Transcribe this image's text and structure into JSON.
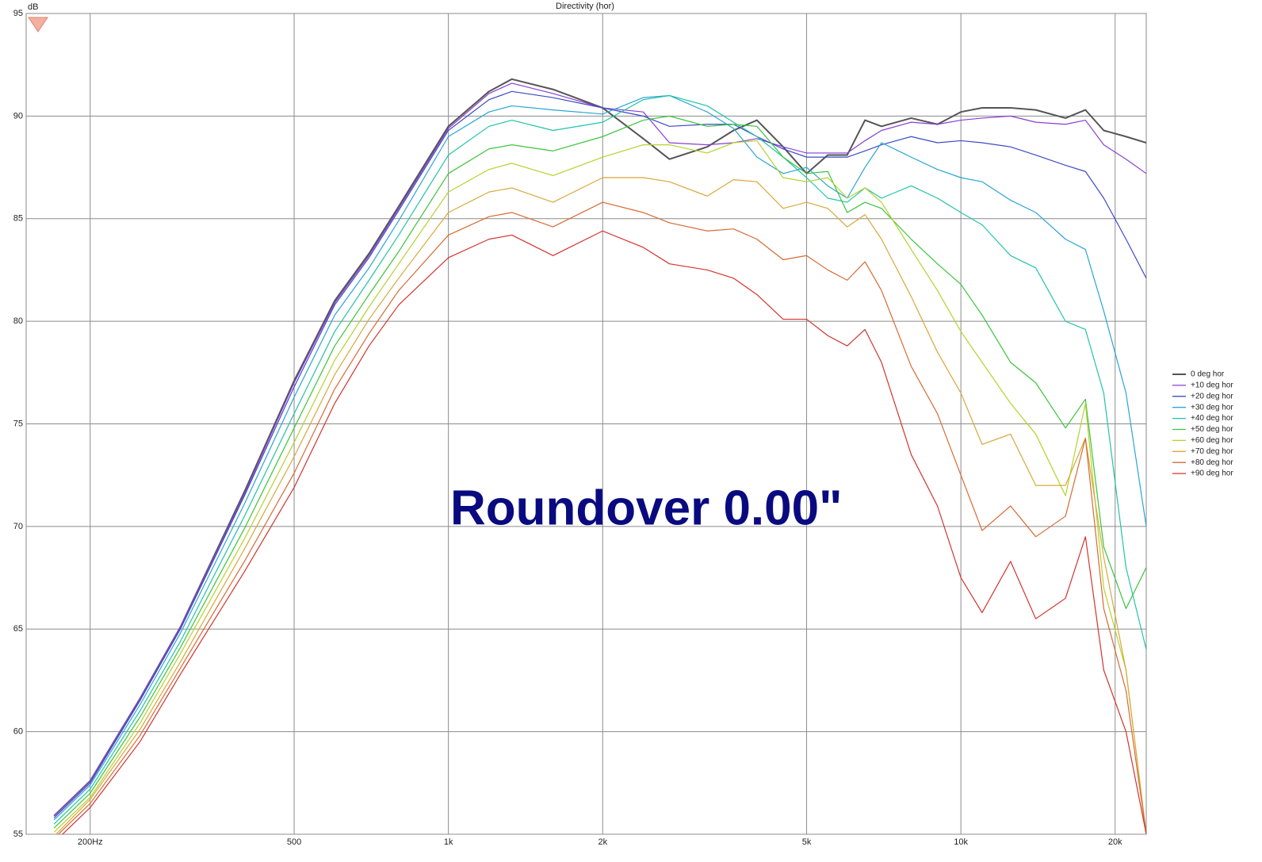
{
  "chart_data": {
    "type": "line",
    "title": "Directivity (hor)",
    "y_label": "dB",
    "annotation": "Roundover 0.00\"",
    "xscale": "log",
    "grid": true,
    "legend": "right",
    "xlim": [
      150,
      23000
    ],
    "ylim": [
      55,
      95
    ],
    "xticks": [
      {
        "value": 200,
        "label": "200Hz"
      },
      500,
      {
        "value": 1000,
        "label": "1k"
      },
      {
        "value": 2000,
        "label": "2k"
      },
      {
        "value": 5000,
        "label": "5k"
      },
      {
        "value": 10000,
        "label": "10k"
      },
      {
        "value": 20000,
        "label": "20k"
      }
    ],
    "yticks": [
      55,
      60,
      65,
      70,
      75,
      80,
      85,
      90,
      95
    ],
    "x": [
      170,
      200,
      250,
      300,
      400,
      500,
      600,
      700,
      800,
      1000,
      1200,
      1330,
      1600,
      2000,
      2400,
      2700,
      3200,
      3600,
      4000,
      4500,
      5000,
      5500,
      6000,
      6500,
      7000,
      8000,
      9000,
      10000,
      11000,
      12500,
      14000,
      16000,
      17500,
      19000,
      21000,
      23000
    ],
    "series": [
      {
        "name": "0 deg hor",
        "color": "#555555",
        "values": [
          55.9,
          57.6,
          61.6,
          65.1,
          71.7,
          77.1,
          81.0,
          83.3,
          85.6,
          89.5,
          91.2,
          91.8,
          91.3,
          90.4,
          88.9,
          87.9,
          88.5,
          89.3,
          89.8,
          88.5,
          87.2,
          88.1,
          88.1,
          89.8,
          89.5,
          89.9,
          89.6,
          90.2,
          90.4,
          90.4,
          90.3,
          89.9,
          90.3,
          89.3,
          89.0,
          88.7
        ]
      },
      {
        "name": "+10 deg hor",
        "color": "#8a3fd1",
        "values": [
          55.9,
          57.6,
          61.6,
          65.1,
          71.6,
          77.0,
          80.9,
          83.2,
          85.5,
          89.4,
          91.1,
          91.6,
          91.1,
          90.4,
          90.2,
          88.7,
          88.6,
          88.7,
          88.9,
          88.5,
          88.2,
          88.2,
          88.2,
          88.8,
          89.3,
          89.7,
          89.6,
          89.8,
          89.9,
          90.0,
          89.7,
          89.6,
          89.8,
          88.6,
          87.9,
          87.2
        ]
      },
      {
        "name": "+20 deg hor",
        "color": "#3d4bc4",
        "values": [
          55.8,
          57.5,
          61.5,
          65.0,
          71.5,
          76.8,
          80.8,
          83.1,
          85.4,
          89.3,
          90.8,
          91.2,
          90.9,
          90.4,
          90.0,
          89.5,
          89.6,
          89.6,
          89.0,
          88.4,
          88.0,
          88.0,
          88.0,
          88.3,
          88.6,
          89.0,
          88.7,
          88.8,
          88.7,
          88.5,
          88.1,
          87.6,
          87.3,
          86.0,
          84.0,
          82.1
        ]
      },
      {
        "name": "+30 deg hor",
        "color": "#2aa5d6",
        "values": [
          55.7,
          57.4,
          61.3,
          64.8,
          71.1,
          76.3,
          80.3,
          82.6,
          84.9,
          89.0,
          90.2,
          90.5,
          90.3,
          90.1,
          90.9,
          91.0,
          90.2,
          89.4,
          88.0,
          87.2,
          87.5,
          86.6,
          86.0,
          87.5,
          88.7,
          88.0,
          87.4,
          87.0,
          86.8,
          85.9,
          85.3,
          84.0,
          83.5,
          80.5,
          76.5,
          70.0
        ]
      },
      {
        "name": "+40 deg hor",
        "color": "#22c4a6",
        "values": [
          55.5,
          57.2,
          61.0,
          64.4,
          70.5,
          75.5,
          79.5,
          82.0,
          84.2,
          88.1,
          89.5,
          89.8,
          89.3,
          89.7,
          90.8,
          91.0,
          90.5,
          89.7,
          89.0,
          88.0,
          87.0,
          86.0,
          85.8,
          86.5,
          86.0,
          86.6,
          86.0,
          85.3,
          84.7,
          83.2,
          82.6,
          80.0,
          79.6,
          76.5,
          68.0,
          64.0
        ]
      },
      {
        "name": "+50 deg hor",
        "color": "#3cc43c",
        "values": [
          55.3,
          57.0,
          60.7,
          64.1,
          69.9,
          74.8,
          78.8,
          81.3,
          83.4,
          87.2,
          88.4,
          88.6,
          88.3,
          89.0,
          89.8,
          90.0,
          89.5,
          89.6,
          89.5,
          88.0,
          87.2,
          87.3,
          85.3,
          85.8,
          85.5,
          84.0,
          82.8,
          81.8,
          80.3,
          78.0,
          77.0,
          74.8,
          76.2,
          69.0,
          66.0,
          68.0
        ]
      },
      {
        "name": "+60 deg hor",
        "color": "#b5d22c",
        "values": [
          55.1,
          56.8,
          60.4,
          63.8,
          69.4,
          74.1,
          78.1,
          80.7,
          82.8,
          86.3,
          87.4,
          87.7,
          87.1,
          88.0,
          88.6,
          88.6,
          88.2,
          88.7,
          88.8,
          87.0,
          86.8,
          87.0,
          86.0,
          86.5,
          85.8,
          83.5,
          81.5,
          79.5,
          78.0,
          76.0,
          74.5,
          71.5,
          76.0,
          67.0,
          63.0,
          55.0
        ]
      },
      {
        "name": "+70 deg hor",
        "color": "#d8a83a",
        "values": [
          54.9,
          56.7,
          60.1,
          63.4,
          68.9,
          73.4,
          77.4,
          80.1,
          82.1,
          85.3,
          86.3,
          86.5,
          85.8,
          87.0,
          87.0,
          86.8,
          86.1,
          86.9,
          86.8,
          85.5,
          85.8,
          85.5,
          84.6,
          85.2,
          84.0,
          81.2,
          78.5,
          76.5,
          74.0,
          74.5,
          72.0,
          72.0,
          74.3,
          68.5,
          63.0,
          55.0
        ]
      },
      {
        "name": "+80 deg hor",
        "color": "#d86a34",
        "values": [
          54.8,
          56.5,
          59.8,
          63.1,
          68.3,
          72.6,
          76.7,
          79.4,
          81.5,
          84.2,
          85.1,
          85.3,
          84.6,
          85.8,
          85.3,
          84.8,
          84.4,
          84.5,
          84.0,
          83.0,
          83.2,
          82.5,
          82.0,
          82.9,
          81.5,
          77.8,
          75.5,
          72.5,
          69.8,
          71.0,
          69.5,
          70.5,
          74.3,
          66.0,
          62.0,
          55.0
        ]
      },
      {
        "name": "+90 deg hor",
        "color": "#d2342e",
        "values": [
          54.6,
          56.3,
          59.5,
          62.8,
          67.8,
          71.9,
          76.0,
          78.8,
          80.8,
          83.1,
          84.0,
          84.2,
          83.2,
          84.4,
          83.6,
          82.8,
          82.5,
          82.1,
          81.3,
          80.1,
          80.1,
          79.3,
          78.8,
          79.6,
          78.0,
          73.5,
          71.0,
          67.5,
          65.8,
          68.3,
          65.5,
          66.5,
          69.5,
          63.0,
          60.0,
          55.0
        ]
      }
    ]
  }
}
